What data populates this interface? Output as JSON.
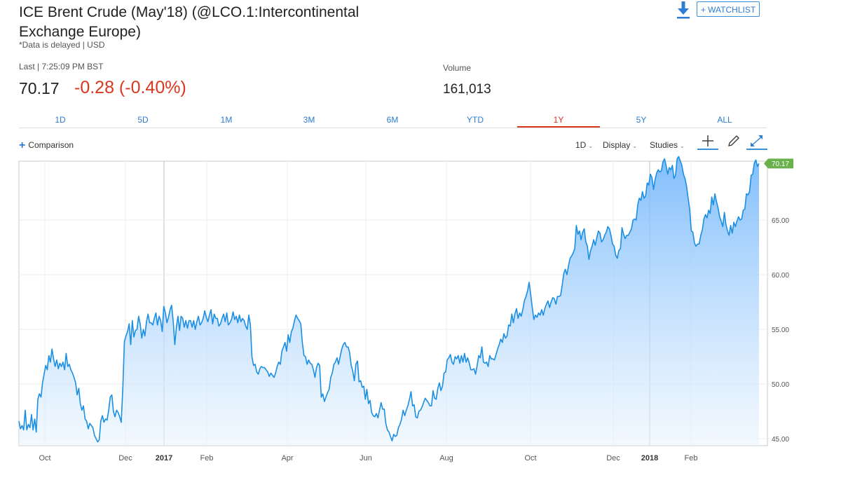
{
  "header": {
    "title": "ICE Brent Crude (May'18) (@LCO.1:Intercontinental Exchange Europe)",
    "delayed_note": "*Data is delayed | USD",
    "watchlist_label": "+ WATCHLIST",
    "download_icon": "download-icon"
  },
  "quote": {
    "last_label": "Last | 7:25:09 PM BST",
    "price": "70.17",
    "change": "-0.28 (-0.40%)",
    "volume_label": "Volume",
    "volume_value": "161,013",
    "change_color": "#d9381e"
  },
  "tabs": [
    {
      "label": "1D",
      "active": false
    },
    {
      "label": "5D",
      "active": false
    },
    {
      "label": "1M",
      "active": false
    },
    {
      "label": "3M",
      "active": false
    },
    {
      "label": "6M",
      "active": false
    },
    {
      "label": "YTD",
      "active": false
    },
    {
      "label": "1Y",
      "active": true
    },
    {
      "label": "5Y",
      "active": false
    },
    {
      "label": "ALL",
      "active": false
    }
  ],
  "toolbar": {
    "comparison_label": "Comparison",
    "interval_label": "1D",
    "display_label": "Display",
    "studies_label": "Studies",
    "icons": [
      "crosshair-icon",
      "pencil-icon",
      "expand-icon"
    ]
  },
  "chart_data": {
    "type": "area",
    "ylim": [
      45,
      71
    ],
    "y_ticks": [
      "45.00",
      "50.00",
      "55.00",
      "60.00",
      "65.00"
    ],
    "x_ticks": [
      "Oct",
      "Dec",
      "2017",
      "Feb",
      "Apr",
      "Jun",
      "Aug",
      "Oct",
      "Dec",
      "2018",
      "Feb"
    ],
    "last_value_label": "70.17",
    "line_color": "#1a8fe3",
    "fill_color": "#6ab2fb",
    "last_label_color": "#6ab04c",
    "values": [
      46.6,
      45.9,
      46.2,
      45.8,
      47.6,
      45.8,
      46.3,
      46.0,
      47.2,
      45.8,
      46.8,
      45.6,
      48.6,
      49.1,
      48.8,
      50.1,
      50.9,
      51.7,
      51.3,
      52.6,
      52.0,
      53.2,
      52.3,
      51.6,
      52.2,
      51.4,
      51.9,
      51.6,
      52.0,
      51.3,
      52.8,
      51.6,
      51.8,
      51.3,
      51.0,
      50.6,
      50.1,
      49.0,
      49.6,
      48.2,
      47.6,
      48.0,
      46.8,
      46.6,
      45.9,
      46.4,
      46.2,
      46.0,
      45.3,
      45.0,
      44.7,
      44.9,
      46.6,
      47.1,
      46.5,
      46.8,
      46.7,
      47.6,
      48.8,
      49.0,
      47.5,
      47.0,
      47.6,
      47.4,
      47.0,
      46.5,
      49.7,
      53.9,
      54.4,
      54.8,
      55.5,
      53.6,
      55.8,
      54.3,
      54.9,
      55.0,
      56.2,
      55.5,
      54.2,
      55.0,
      54.4,
      55.7,
      56.4,
      55.6,
      55.6,
      55.4,
      56.0,
      56.5,
      55.4,
      56.2,
      55.8,
      54.8,
      57.1,
      56.5,
      55.6,
      56.1,
      56.8,
      57.2,
      55.7,
      53.6,
      55.2,
      56.2,
      54.9,
      56.2,
      56.0,
      55.2,
      55.8,
      55.1,
      55.8,
      55.8,
      55.2,
      55.8,
      55.0,
      55.7,
      56.2,
      55.4,
      55.6,
      56.0,
      56.7,
      56.1,
      55.7,
      56.3,
      56.8,
      55.5,
      56.4,
      56.0,
      56.0,
      55.3,
      55.5,
      56.0,
      56.4,
      55.7,
      56.5,
      55.4,
      55.6,
      55.9,
      56.6,
      55.9,
      56.2,
      55.6,
      56.3,
      55.7,
      56.0,
      55.8,
      55.3,
      55.0,
      56.3,
      55.4,
      52.5,
      51.7,
      51.8,
      51.1,
      50.9,
      51.4,
      51.6,
      51.5,
      51.5,
      51.3,
      51.1,
      50.7,
      51.0,
      50.8,
      50.6,
      51.0,
      51.6,
      52.0,
      51.8,
      53.0,
      53.4,
      53.8,
      53.0,
      54.5,
      53.8,
      54.8,
      55.1,
      55.8,
      56.3,
      56.0,
      55.8,
      55.5,
      53.8,
      52.6,
      52.5,
      51.8,
      52.2,
      51.9,
      51.8,
      51.3,
      50.6,
      51.5,
      51.9,
      51.7,
      48.8,
      49.1,
      48.4,
      48.8,
      49.2,
      49.5,
      50.6,
      51.0,
      51.8,
      52.0,
      52.4,
      51.8,
      52.5,
      53.2,
      53.6,
      53.8,
      53.4,
      53.4,
      52.9,
      51.7,
      51.2,
      50.3,
      51.8,
      52.1,
      50.2,
      50.3,
      49.7,
      49.8,
      48.6,
      49.5,
      48.2,
      48.5,
      47.4,
      47.1,
      47.0,
      47.3,
      46.9,
      47.6,
      48.3,
      47.7,
      47.7,
      46.4,
      45.8,
      45.6,
      45.2,
      44.8,
      45.4,
      45.2,
      45.3,
      46.0,
      46.3,
      46.8,
      47.6,
      47.1,
      47.6,
      48.0,
      48.6,
      49.3,
      48.0,
      48.1,
      47.0,
      46.9,
      47.5,
      47.6,
      47.9,
      48.3,
      48.7,
      48.5,
      48.3,
      48.0,
      48.0,
      49.4,
      48.7,
      48.6,
      49.6,
      50.1,
      49.4,
      49.8,
      51.0,
      51.1,
      52.2,
      52.4,
      52.7,
      52.0,
      51.8,
      52.5,
      52.3,
      52.6,
      51.9,
      52.6,
      52.0,
      52.8,
      52.0,
      52.4,
      51.9,
      51.3,
      51.3,
      51.4,
      50.9,
      51.7,
      52.6,
      52.4,
      53.4,
      52.0,
      51.9,
      52.0,
      51.6,
      52.6,
      52.3,
      52.3,
      52.2,
      52.7,
      53.2,
      53.6,
      54.1,
      53.8,
      54.6,
      54.2,
      54.4,
      55.4,
      55.3,
      56.4,
      55.6,
      56.4,
      56.9,
      56.0,
      56.5,
      56.2,
      56.8,
      57.6,
      58.0,
      58.5,
      59.3,
      58.2,
      57.0,
      55.9,
      56.3,
      56.1,
      56.5,
      56.3,
      56.8,
      56.3,
      56.9,
      57.3,
      57.6,
      57.0,
      57.5,
      57.9,
      57.8,
      57.3,
      58.0,
      58.0,
      58.1,
      59.0,
      60.1,
      60.5,
      60.0,
      60.8,
      61.5,
      61.7,
      62.0,
      62.4,
      64.5,
      63.7,
      64.0,
      63.2,
      63.9,
      64.2,
      63.0,
      62.6,
      61.4,
      62.2,
      62.6,
      63.2,
      62.7,
      63.4,
      64.0,
      63.8,
      63.0,
      63.2,
      63.6,
      63.9,
      64.4,
      64.2,
      63.6,
      62.8,
      62.6,
      61.8,
      61.5,
      62.2,
      62.4,
      64.3,
      63.7,
      63.3,
      63.6,
      63.6,
      63.9,
      64.2,
      65.0,
      65.1,
      65.0,
      66.4,
      67.0,
      66.8,
      67.6,
      67.0,
      67.2,
      68.4,
      68.2,
      69.2,
      68.9,
      67.8,
      68.7,
      69.3,
      69.6,
      69.4,
      69.5,
      70.3,
      70.6,
      70.0,
      69.2,
      69.8,
      69.6,
      70.0,
      68.8,
      69.1,
      70.6,
      70.8,
      70.4,
      70.0,
      69.2,
      68.8,
      68.1,
      67.0,
      66.0,
      64.0,
      63.9,
      62.9,
      62.6,
      62.8,
      62.8,
      63.6,
      64.1,
      65.1,
      65.5,
      65.2,
      65.9,
      65.6,
      67.1,
      66.4,
      67.4,
      66.7,
      66.1,
      65.3,
      64.9,
      64.4,
      65.7,
      64.6,
      64.0,
      63.6,
      64.5,
      63.8,
      64.8,
      64.4,
      64.9,
      65.3,
      65.0,
      65.1,
      65.9,
      66.0,
      67.4,
      67.3,
      67.6,
      69.1,
      69.2,
      70.2,
      70.5,
      69.9,
      70.17
    ]
  }
}
